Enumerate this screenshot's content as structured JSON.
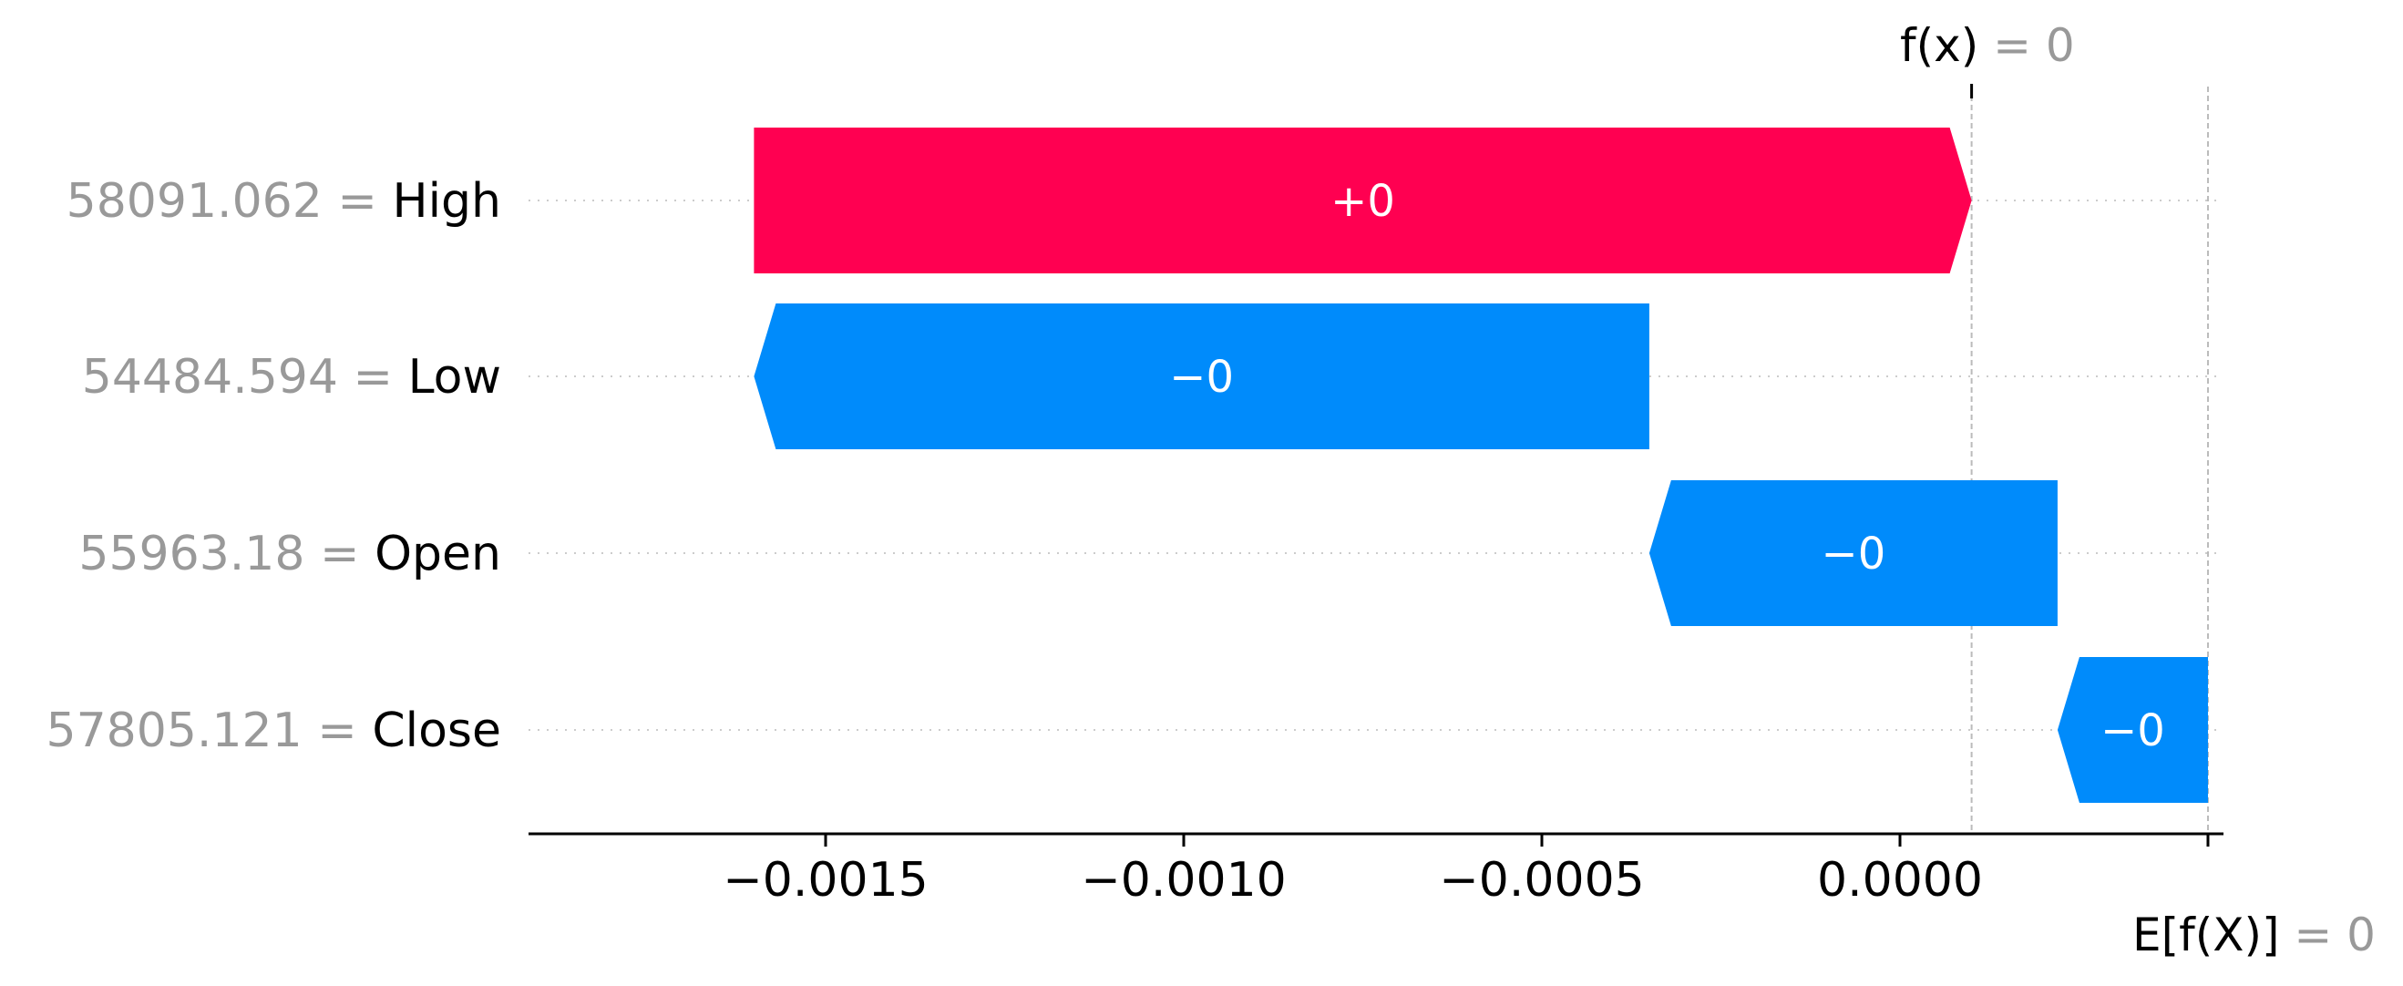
{
  "chart_data": {
    "type": "waterfall",
    "base_value_label": "E[f(X)] = 0",
    "output_value_label": "f(x) = 0",
    "base_value": 0.00043,
    "output_value": 0.0001,
    "xlim": [
      -0.00205,
      0.00045
    ],
    "xticks": [
      -0.0015,
      -0.001,
      -0.0005,
      0.0
    ],
    "xtick_labels": [
      "−0.0015",
      "−0.0010",
      "−0.0005",
      "0.0000"
    ],
    "colors": {
      "positive": "#ff0051",
      "negative": "#008bfb",
      "grey": "#999999"
    },
    "features": [
      {
        "value": "58091.062",
        "name": "High",
        "start": -0.0016,
        "end": 0.0001,
        "label": "+0"
      },
      {
        "value": "54484.594",
        "name": "Low",
        "start": -0.00035,
        "end": -0.0016,
        "label": "−0"
      },
      {
        "value": "55963.18",
        "name": "Open",
        "start": 0.00022,
        "end": -0.00035,
        "label": "−0"
      },
      {
        "value": "57805.121",
        "name": "Close",
        "start": 0.00043,
        "end": 0.00022,
        "label": "−0"
      }
    ]
  }
}
